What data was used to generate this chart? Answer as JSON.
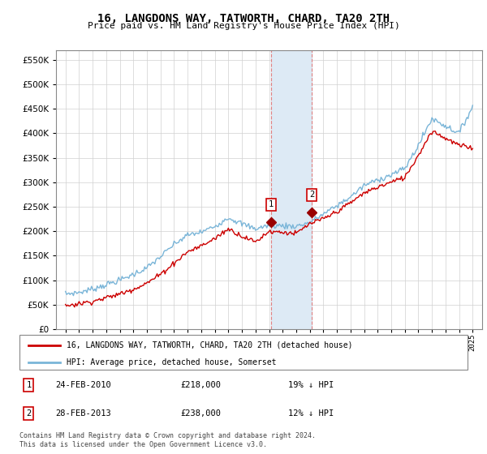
{
  "title": "16, LANGDONS WAY, TATWORTH, CHARD, TA20 2TH",
  "subtitle": "Price paid vs. HM Land Registry's House Price Index (HPI)",
  "legend_line1": "16, LANGDONS WAY, TATWORTH, CHARD, TA20 2TH (detached house)",
  "legend_line2": "HPI: Average price, detached house, Somerset",
  "footnote": "Contains HM Land Registry data © Crown copyright and database right 2024.\nThis data is licensed under the Open Government Licence v3.0.",
  "transaction1_date": "24-FEB-2010",
  "transaction1_price": "£218,000",
  "transaction1_hpi": "19% ↓ HPI",
  "transaction2_date": "28-FEB-2013",
  "transaction2_price": "£238,000",
  "transaction2_hpi": "12% ↓ HPI",
  "hpi_color": "#7ab5d8",
  "price_color": "#cc0000",
  "highlight_color": "#ddeaf5",
  "dashed_line_color": "#e08080",
  "sold_marker_color": "#990000",
  "t1_x": 2010.15,
  "t1_y": 218000,
  "t2_x": 2013.15,
  "t2_y": 238000,
  "ylim": [
    0,
    570000
  ],
  "yticks": [
    0,
    50000,
    100000,
    150000,
    200000,
    250000,
    300000,
    350000,
    400000,
    450000,
    500000,
    550000
  ],
  "xlim_min": 1994.3,
  "xlim_max": 2025.7
}
